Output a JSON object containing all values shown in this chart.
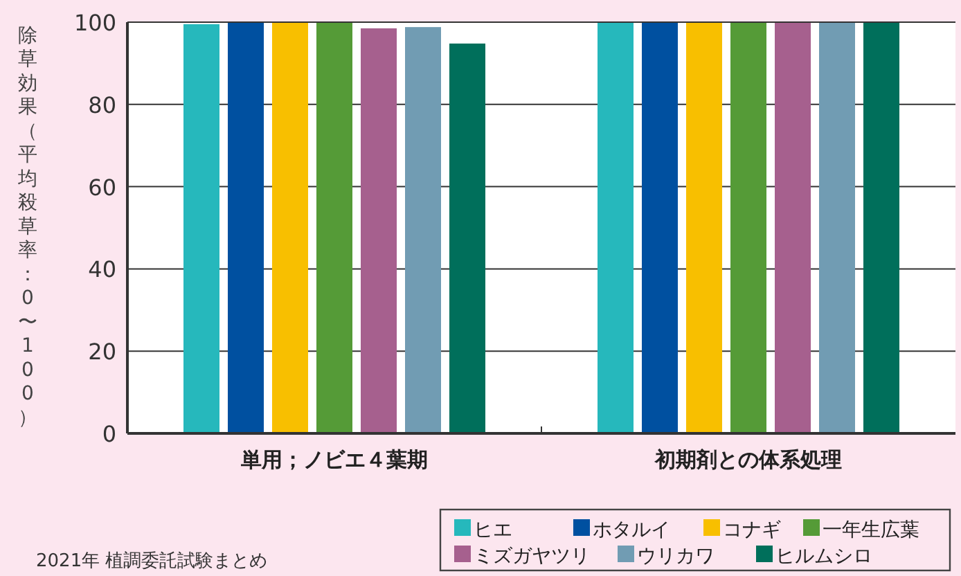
{
  "chart_data": {
    "type": "bar",
    "ylabel": "除草効果（平均殺草率：0〜100）",
    "categories": [
      "単用；ノビエ４葉期",
      "初期剤との体系処理"
    ],
    "series": [
      {
        "name": "ヒエ",
        "color": "#26b8bc",
        "values": [
          99.5,
          100
        ]
      },
      {
        "name": "ホタルイ",
        "color": "#0050a0",
        "values": [
          100,
          100
        ]
      },
      {
        "name": "コナギ",
        "color": "#f8bf00",
        "values": [
          100,
          100
        ]
      },
      {
        "name": "一年生広葉",
        "color": "#559b37",
        "values": [
          100,
          100
        ]
      },
      {
        "name": "ミズガヤツリ",
        "color": "#a6608e",
        "values": [
          98.5,
          100
        ]
      },
      {
        "name": "ウリカワ",
        "color": "#719cb3",
        "values": [
          98.8,
          100
        ]
      },
      {
        "name": "ヒルムシロ",
        "color": "#006f5b",
        "values": [
          94.8,
          100
        ]
      }
    ],
    "ylim": [
      0,
      100
    ],
    "yticks": [
      0,
      20,
      40,
      60,
      80,
      100
    ],
    "grid": "y",
    "legend": "bottom right",
    "annotations": [
      "2021年 植調委託試験まとめ"
    ]
  }
}
